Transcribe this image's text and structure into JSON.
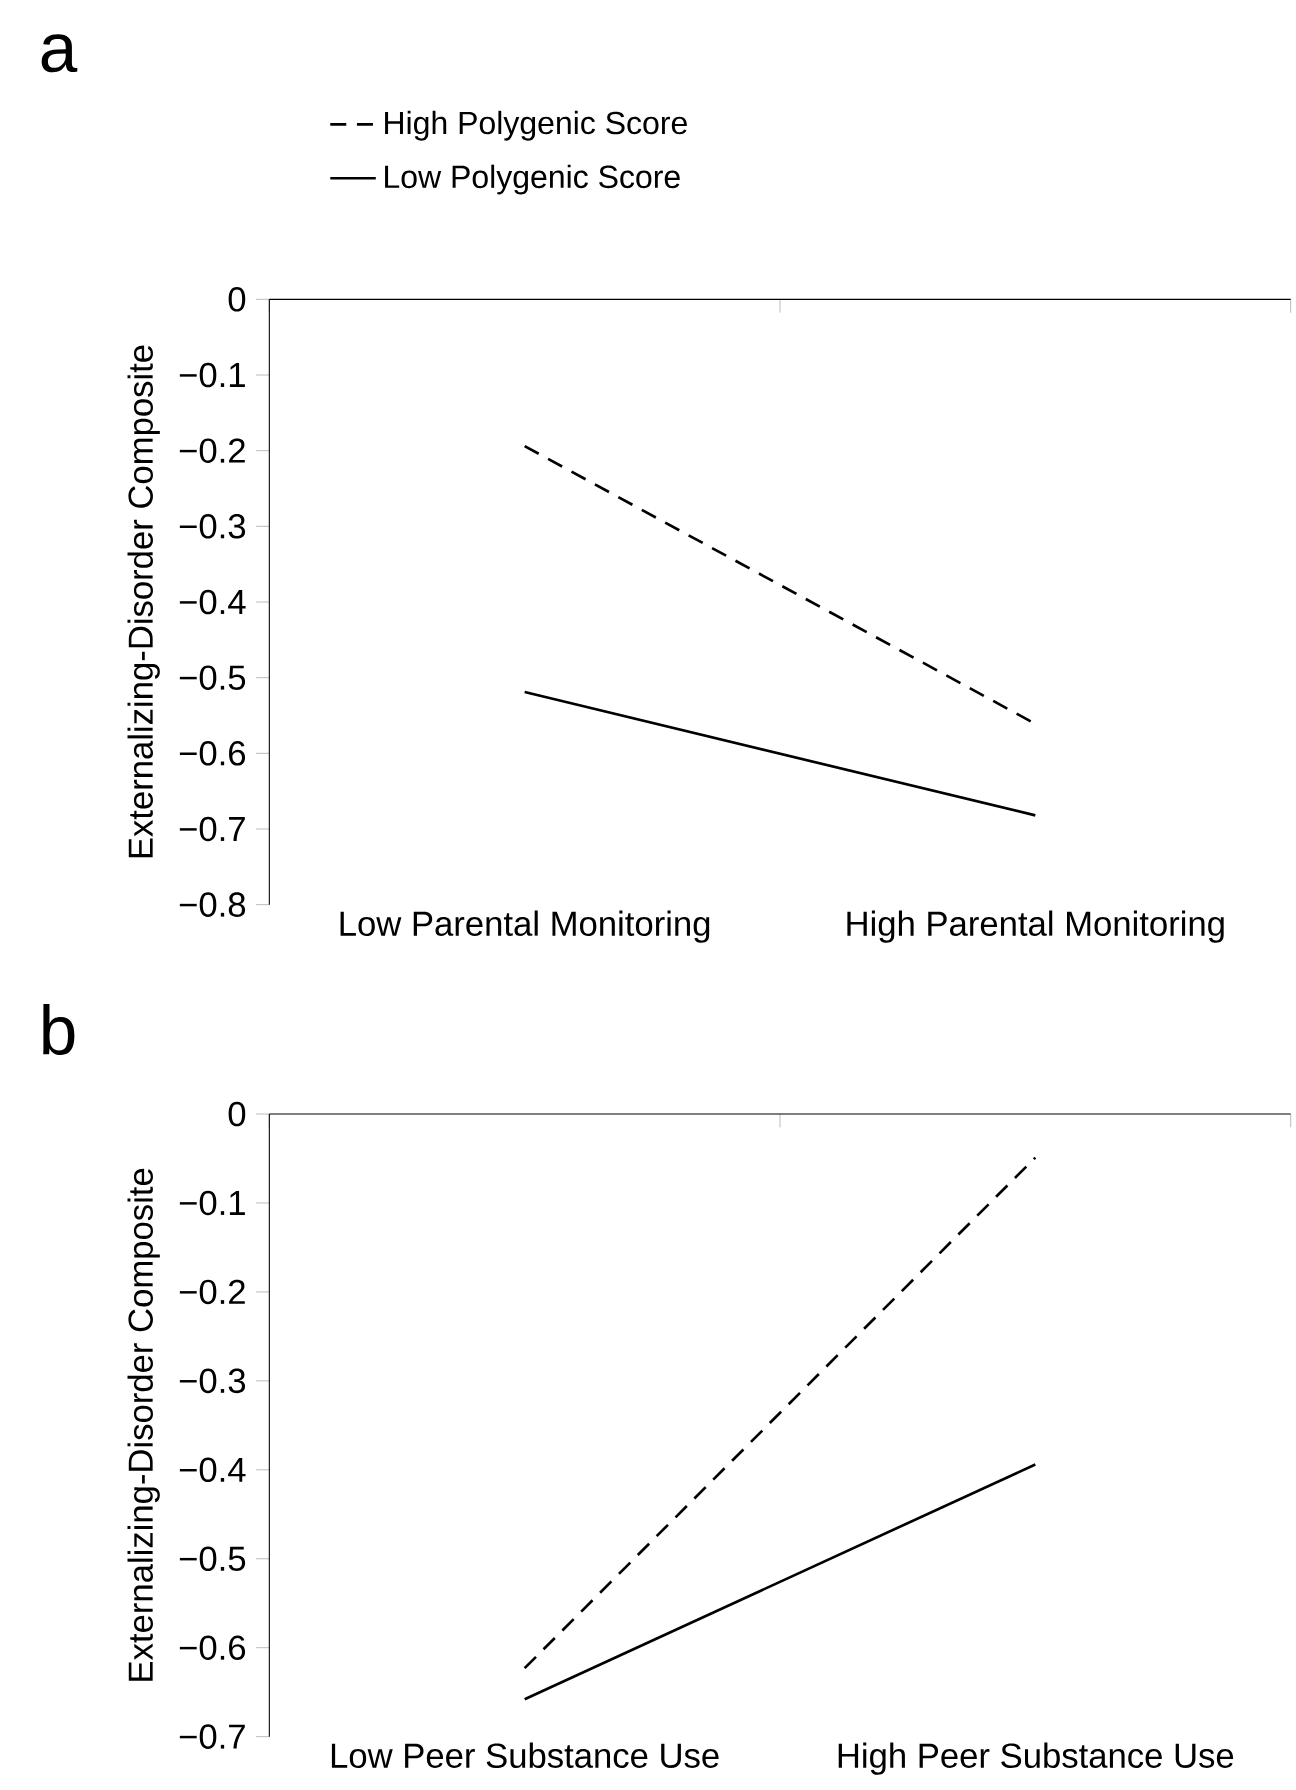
{
  "chart_data": [
    {
      "type": "line",
      "title": "a",
      "ylabel": "Externalizing-Disorder Composite",
      "categories": [
        "Low Parental Monitoring",
        "High Parental Monitoring"
      ],
      "series": [
        {
          "name": "High Polygenic Score",
          "color": "#000000",
          "line_style": "dashed",
          "values": [
            -0.194,
            -0.561
          ]
        },
        {
          "name": "Low Polygenic Score",
          "color": "#000000",
          "line_style": "solid",
          "values": [
            -0.519,
            -0.682
          ]
        }
      ],
      "ylim": [
        -0.8,
        0
      ],
      "yticks": [
        0,
        {
          "value": -0.1,
          "label": "−0.1"
        },
        {
          "value": -0.2,
          "label": "−0.2"
        },
        {
          "value": -0.3,
          "label": "−0.3"
        },
        {
          "value": -0.4,
          "label": "−0.4"
        },
        {
          "value": -0.5,
          "label": "−0.5"
        },
        {
          "value": -0.6,
          "label": "−0.6"
        },
        {
          "value": -0.7,
          "label": "−0.7"
        },
        {
          "value": -0.8,
          "label": "−0.8"
        }
      ],
      "legend": "top",
      "grid": false,
      "marker": "none"
    },
    {
      "type": "line",
      "title": "b",
      "ylabel": "Externalizing-Disorder Composite",
      "categories": [
        "Low Peer Substance Use",
        "High Peer Substance Use"
      ],
      "series": [
        {
          "color": "#000000",
          "line_style": "dashed",
          "values": [
            -0.623,
            -0.049
          ]
        },
        {
          "color": "#000000",
          "line_style": "solid",
          "values": [
            -0.658,
            -0.394
          ]
        }
      ],
      "ylim": [
        -0.7,
        0
      ],
      "yticks": [
        0,
        {
          "value": -0.1,
          "label": "−0.1"
        },
        {
          "value": -0.2,
          "label": "−0.2"
        },
        {
          "value": -0.3,
          "label": "−0.3"
        },
        {
          "value": -0.4,
          "label": "−0.4"
        },
        {
          "value": -0.5,
          "label": "−0.5"
        },
        {
          "value": -0.6,
          "label": "−0.6"
        },
        {
          "value": -0.7,
          "label": "−0.7"
        }
      ],
      "legend": false,
      "grid": false,
      "marker": "none"
    }
  ]
}
